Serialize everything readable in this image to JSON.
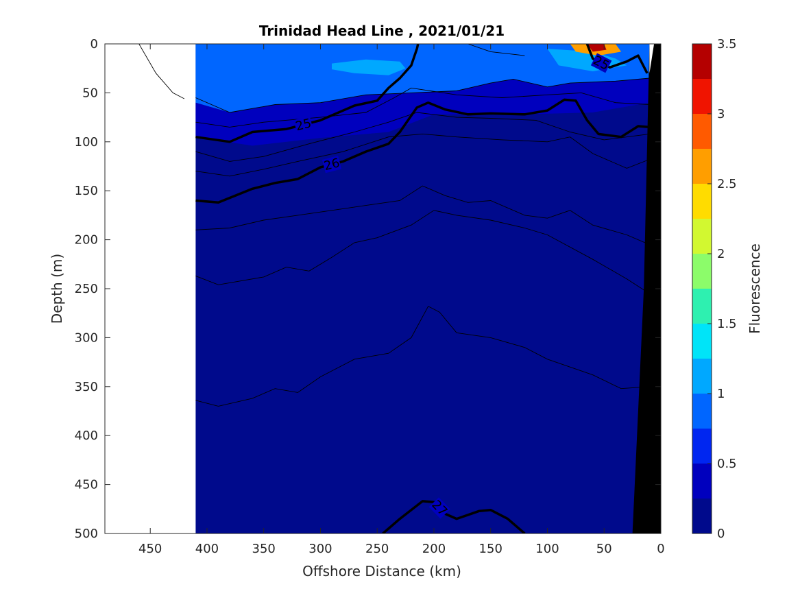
{
  "chart_data": {
    "type": "contour",
    "title": "Trinidad Head Line , 2021/01/21",
    "xlabel": "Offshore Distance (km)",
    "ylabel": "Depth (m)",
    "colorbar_label": "Fluorescence",
    "xlim": [
      490,
      0
    ],
    "ylim": [
      0,
      500
    ],
    "x_reversed": true,
    "y_reversed": true,
    "xticks": [
      450,
      400,
      350,
      300,
      250,
      200,
      150,
      100,
      50,
      0
    ],
    "yticks": [
      0,
      50,
      100,
      150,
      200,
      250,
      300,
      350,
      400,
      450,
      500
    ],
    "colorbar": {
      "range": [
        0,
        3.5
      ],
      "ticks": [
        0,
        0.5,
        1,
        1.5,
        2,
        2.5,
        3,
        3.5
      ],
      "levels": [
        {
          "from": 0.0,
          "to": 0.25,
          "color": "#000a8c"
        },
        {
          "from": 0.25,
          "to": 0.5,
          "color": "#0000be"
        },
        {
          "from": 0.5,
          "to": 0.75,
          "color": "#0026f0"
        },
        {
          "from": 0.75,
          "to": 1.0,
          "color": "#0066ff"
        },
        {
          "from": 1.0,
          "to": 1.25,
          "color": "#00a8ff"
        },
        {
          "from": 1.25,
          "to": 1.5,
          "color": "#00e4f8"
        },
        {
          "from": 1.5,
          "to": 1.75,
          "color": "#2ef0b0"
        },
        {
          "from": 1.75,
          "to": 2.0,
          "color": "#8cfc6a"
        },
        {
          "from": 2.0,
          "to": 2.25,
          "color": "#d2f830"
        },
        {
          "from": 2.25,
          "to": 2.5,
          "color": "#ffdc00"
        },
        {
          "from": 2.5,
          "to": 2.75,
          "color": "#ff9e00"
        },
        {
          "from": 2.75,
          "to": 3.0,
          "color": "#ff5a00"
        },
        {
          "from": 3.0,
          "to": 3.25,
          "color": "#f01400"
        },
        {
          "from": 3.25,
          "to": 3.5,
          "color": "#b40000"
        }
      ]
    },
    "data_extent_km": [
      410,
      10
    ],
    "fluorescence_regions": [
      {
        "name": "upper-mixed-layer",
        "value": 0.8,
        "points": [
          [
            410,
            0
          ],
          [
            10,
            0
          ],
          [
            10,
            35
          ],
          [
            40,
            38
          ],
          [
            80,
            40
          ],
          [
            100,
            44
          ],
          [
            130,
            36
          ],
          [
            150,
            40
          ],
          [
            180,
            48
          ],
          [
            220,
            50
          ],
          [
            260,
            52
          ],
          [
            300,
            60
          ],
          [
            340,
            62
          ],
          [
            380,
            70
          ],
          [
            410,
            60
          ]
        ]
      },
      {
        "name": "offshore-patch",
        "value": 1.1,
        "points": [
          [
            290,
            20
          ],
          [
            260,
            16
          ],
          [
            230,
            18
          ],
          [
            225,
            25
          ],
          [
            240,
            32
          ],
          [
            270,
            30
          ],
          [
            290,
            26
          ]
        ]
      },
      {
        "name": "nearshore-patch",
        "value": 1.1,
        "points": [
          [
            100,
            5
          ],
          [
            60,
            8
          ],
          [
            40,
            15
          ],
          [
            30,
            22
          ],
          [
            60,
            28
          ],
          [
            90,
            22
          ]
        ]
      },
      {
        "name": "coastal-bloom",
        "value": 2.6,
        "points": [
          [
            80,
            0
          ],
          [
            40,
            0
          ],
          [
            35,
            8
          ],
          [
            55,
            12
          ],
          [
            75,
            8
          ]
        ]
      },
      {
        "name": "coastal-bloom-core",
        "value": 3.3,
        "points": [
          [
            65,
            0
          ],
          [
            50,
            0
          ],
          [
            48,
            6
          ],
          [
            60,
            8
          ]
        ]
      },
      {
        "name": "thermocline-band",
        "value": 0.4,
        "points": [
          [
            410,
            60
          ],
          [
            380,
            70
          ],
          [
            340,
            62
          ],
          [
            300,
            60
          ],
          [
            260,
            52
          ],
          [
            220,
            50
          ],
          [
            180,
            48
          ],
          [
            150,
            40
          ],
          [
            130,
            36
          ],
          [
            100,
            44
          ],
          [
            80,
            40
          ],
          [
            40,
            38
          ],
          [
            10,
            35
          ],
          [
            10,
            60
          ],
          [
            60,
            70
          ],
          [
            120,
            72
          ],
          [
            200,
            72
          ],
          [
            240,
            90
          ],
          [
            300,
            96
          ],
          [
            360,
            104
          ],
          [
            410,
            95
          ]
        ]
      }
    ],
    "thick_contours": [
      {
        "label": "25",
        "points": [
          [
            410,
            95
          ],
          [
            380,
            100
          ],
          [
            360,
            90
          ],
          [
            330,
            87
          ],
          [
            300,
            78
          ],
          [
            270,
            63
          ],
          [
            250,
            58
          ],
          [
            240,
            45
          ],
          [
            230,
            35
          ],
          [
            220,
            22
          ],
          [
            215,
            5
          ],
          [
            214,
            0
          ]
        ]
      },
      {
        "label": "26",
        "points": [
          [
            410,
            160
          ],
          [
            390,
            162
          ],
          [
            360,
            148
          ],
          [
            340,
            142
          ],
          [
            320,
            138
          ],
          [
            300,
            126
          ],
          [
            280,
            120
          ],
          [
            260,
            110
          ],
          [
            240,
            102
          ],
          [
            230,
            90
          ],
          [
            215,
            65
          ],
          [
            205,
            60
          ],
          [
            190,
            67
          ],
          [
            170,
            72
          ],
          [
            150,
            71
          ],
          [
            120,
            72
          ],
          [
            100,
            68
          ],
          [
            85,
            57
          ],
          [
            75,
            58
          ],
          [
            65,
            78
          ],
          [
            55,
            92
          ],
          [
            35,
            95
          ],
          [
            20,
            84
          ],
          [
            10,
            85
          ]
        ]
      },
      {
        "label": "25",
        "points": [
          [
            65,
            0
          ],
          [
            60,
            15
          ],
          [
            45,
            24
          ],
          [
            30,
            18
          ],
          [
            20,
            12
          ],
          [
            12,
            30
          ]
        ]
      },
      {
        "label": "27",
        "points": [
          [
            245,
            500
          ],
          [
            230,
            485
          ],
          [
            210,
            467
          ],
          [
            200,
            468
          ],
          [
            190,
            480
          ],
          [
            180,
            485
          ],
          [
            160,
            477
          ],
          [
            150,
            476
          ],
          [
            135,
            485
          ],
          [
            120,
            500
          ]
        ]
      }
    ],
    "thin_contours": [
      [
        [
          410,
          55
        ],
        [
          380,
          70
        ],
        [
          340,
          62
        ],
        [
          300,
          60
        ],
        [
          260,
          52
        ],
        [
          220,
          50
        ],
        [
          180,
          48
        ],
        [
          150,
          40
        ],
        [
          130,
          36
        ],
        [
          100,
          44
        ],
        [
          80,
          40
        ],
        [
          40,
          38
        ],
        [
          10,
          35
        ]
      ],
      [
        [
          410,
          80
        ],
        [
          380,
          85
        ],
        [
          350,
          80
        ],
        [
          300,
          75
        ],
        [
          260,
          70
        ],
        [
          235,
          55
        ],
        [
          220,
          45
        ],
        [
          180,
          52
        ],
        [
          140,
          55
        ],
        [
          100,
          52
        ],
        [
          70,
          50
        ],
        [
          40,
          60
        ],
        [
          10,
          62
        ]
      ],
      [
        [
          410,
          110
        ],
        [
          380,
          120
        ],
        [
          350,
          115
        ],
        [
          310,
          102
        ],
        [
          270,
          90
        ],
        [
          240,
          80
        ],
        [
          215,
          70
        ],
        [
          180,
          75
        ],
        [
          150,
          76
        ],
        [
          110,
          78
        ],
        [
          80,
          90
        ],
        [
          50,
          98
        ],
        [
          10,
          92
        ]
      ],
      [
        [
          410,
          130
        ],
        [
          380,
          135
        ],
        [
          350,
          128
        ],
        [
          320,
          120
        ],
        [
          280,
          110
        ],
        [
          240,
          95
        ],
        [
          210,
          92
        ],
        [
          180,
          95
        ],
        [
          140,
          98
        ],
        [
          100,
          100
        ],
        [
          80,
          95
        ],
        [
          60,
          112
        ],
        [
          30,
          127
        ],
        [
          10,
          118
        ]
      ],
      [
        [
          410,
          190
        ],
        [
          380,
          188
        ],
        [
          350,
          180
        ],
        [
          320,
          175
        ],
        [
          290,
          170
        ],
        [
          260,
          165
        ],
        [
          230,
          160
        ],
        [
          210,
          145
        ],
        [
          190,
          155
        ],
        [
          170,
          162
        ],
        [
          150,
          160
        ],
        [
          120,
          175
        ],
        [
          100,
          178
        ],
        [
          80,
          170
        ],
        [
          60,
          185
        ],
        [
          30,
          195
        ],
        [
          10,
          205
        ]
      ],
      [
        [
          410,
          237
        ],
        [
          390,
          246
        ],
        [
          350,
          238
        ],
        [
          330,
          228
        ],
        [
          310,
          232
        ],
        [
          290,
          218
        ],
        [
          270,
          203
        ],
        [
          250,
          198
        ],
        [
          220,
          185
        ],
        [
          200,
          170
        ],
        [
          180,
          175
        ],
        [
          150,
          180
        ],
        [
          120,
          188
        ],
        [
          100,
          195
        ],
        [
          60,
          220
        ],
        [
          30,
          240
        ],
        [
          10,
          255
        ]
      ],
      [
        [
          410,
          364
        ],
        [
          390,
          370
        ],
        [
          360,
          362
        ],
        [
          340,
          352
        ],
        [
          320,
          356
        ],
        [
          300,
          340
        ],
        [
          270,
          322
        ],
        [
          240,
          316
        ],
        [
          220,
          300
        ],
        [
          205,
          268
        ],
        [
          195,
          274
        ],
        [
          180,
          295
        ],
        [
          150,
          300
        ],
        [
          120,
          310
        ],
        [
          100,
          322
        ],
        [
          60,
          338
        ],
        [
          35,
          352
        ],
        [
          10,
          350
        ]
      ],
      [
        [
          460,
          0
        ],
        [
          445,
          30
        ],
        [
          430,
          50
        ],
        [
          420,
          56
        ]
      ],
      [
        [
          170,
          0
        ],
        [
          150,
          8
        ],
        [
          120,
          12
        ]
      ]
    ],
    "bathymetry": [
      [
        10,
        0
      ],
      [
        10,
        0
      ],
      [
        0,
        0
      ],
      [
        0,
        500
      ],
      [
        25,
        500
      ]
    ]
  }
}
